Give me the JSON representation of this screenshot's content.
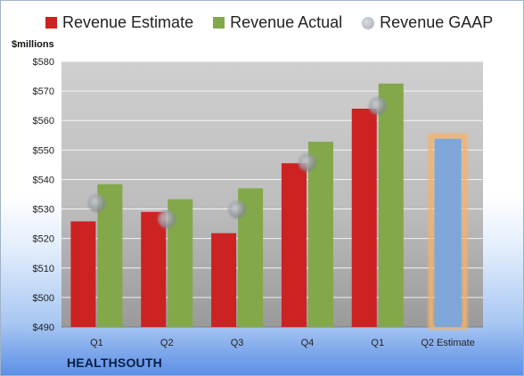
{
  "chart_data": {
    "type": "bar",
    "categories": [
      "Q1",
      "Q2",
      "Q3",
      "Q4",
      "Q1",
      "Q2 Estimate"
    ],
    "series": [
      {
        "name": "Revenue Estimate",
        "values": [
          525.8,
          529.0,
          521.8,
          545.5,
          564.0,
          null
        ]
      },
      {
        "name": "Revenue Actual",
        "values": [
          538.4,
          533.3,
          537.0,
          552.8,
          572.5,
          553.8
        ]
      },
      {
        "name": "Revenue GAAP",
        "values": [
          532.0,
          526.5,
          529.8,
          545.8,
          565.0,
          null
        ]
      }
    ],
    "ylabel": "$millions",
    "ylim": [
      490,
      580
    ],
    "yticks": [
      "$490",
      "$500",
      "$510",
      "$520",
      "$530",
      "$540",
      "$550",
      "$560",
      "$570",
      "$580"
    ],
    "grid": true,
    "legend": "top",
    "colors": {
      "estimate": "#cc2222",
      "actual": "#82a84a",
      "gaap": "#a7acb4",
      "forecast_bar": "#7ea6d8",
      "forecast_halo": "#f3b36a"
    }
  },
  "brand": "HEALTHSOUTH"
}
